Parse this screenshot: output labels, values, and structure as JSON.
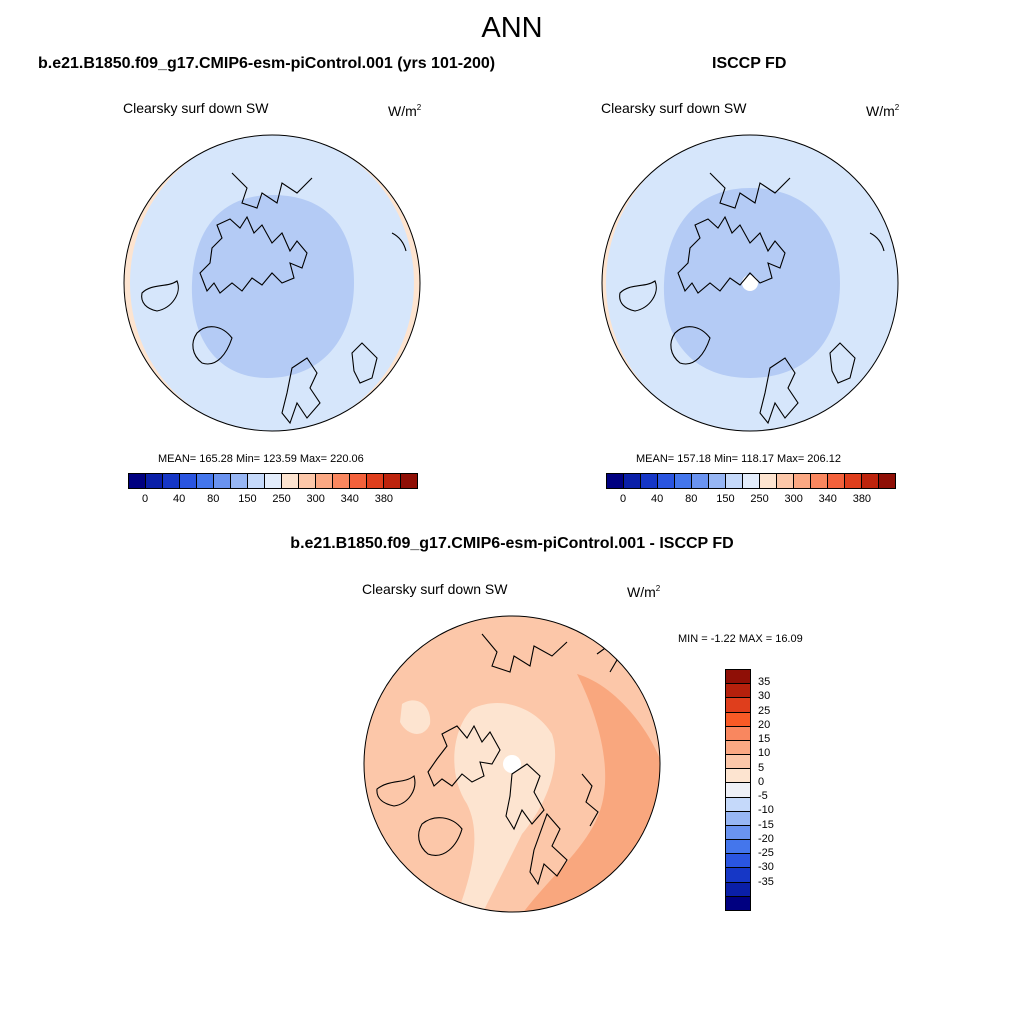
{
  "title": "ANN",
  "panels": [
    {
      "case": "b.e21.B1850.f09_g17.CMIP6-esm-piControl.001 (yrs 101-200)",
      "variable": "Clearsky surf down SW",
      "units": "W/m",
      "units_exp": "2",
      "stats": "MEAN= 165.28  Min= 123.59  Max= 220.06"
    },
    {
      "case": "ISCCP FD",
      "variable": "Clearsky surf down SW",
      "units": "W/m",
      "units_exp": "2",
      "stats": "MEAN= 157.18  Min= 118.17  Max= 206.12"
    },
    {
      "case": "b.e21.B1850.f09_g17.CMIP6-esm-piControl.001 - ISCCP FD",
      "variable": "Clearsky surf down SW",
      "units": "W/m",
      "units_exp": "2",
      "stats": "MIN =  -1.22 MAX =  16.09"
    }
  ],
  "abs_colorbar": {
    "colors": [
      "#000080",
      "#0a1fa8",
      "#1637c6",
      "#2a55e0",
      "#4476ec",
      "#6a93f0",
      "#97b6f4",
      "#c5d9fa",
      "#e2ecfb",
      "#fde4d0",
      "#fcc7a9",
      "#fba883",
      "#f9875f",
      "#f3613b",
      "#df3e1c",
      "#bd240d",
      "#8f0f06"
    ],
    "ticks": [
      "0",
      "40",
      "80",
      "150",
      "250",
      "300",
      "340",
      "380"
    ]
  },
  "diff_colorbar": {
    "colors": [
      "#8f0f06",
      "#b5200c",
      "#df3e1c",
      "#f85a26",
      "#f9875f",
      "#fba883",
      "#fcc7a9",
      "#fde4d0",
      "#eef0f7",
      "#c5d9fa",
      "#97b6f4",
      "#6a93f0",
      "#4476ec",
      "#2a55e0",
      "#1637c6",
      "#0a1fa8",
      "#000080"
    ],
    "ticks": [
      "35",
      "30",
      "25",
      "20",
      "15",
      "10",
      "5",
      "0",
      "-5",
      "-10",
      "-15",
      "-20",
      "-25",
      "-30",
      "-35"
    ]
  },
  "map_colors": {
    "abs_outer": "#d6e6fb",
    "abs_inner": "#b4cbf5",
    "abs_edge": "#fde4d0",
    "pole_hole": "#ffffff",
    "diff_base": "#fcc7a9",
    "diff_light": "#fde4d0",
    "diff_strong": "#f9a77e"
  }
}
